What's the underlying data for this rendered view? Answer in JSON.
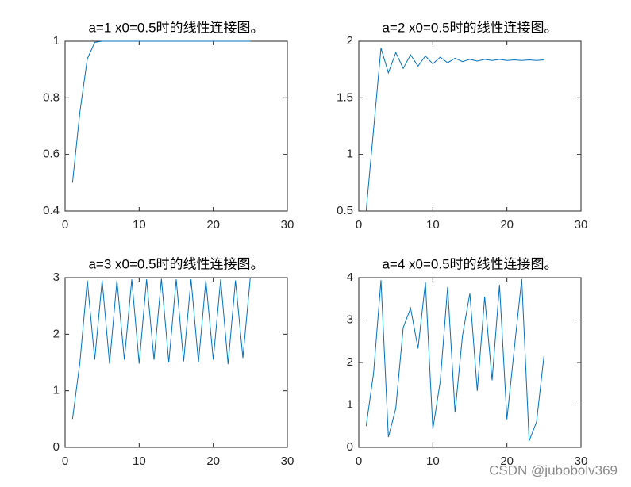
{
  "chart_data": [
    {
      "type": "line",
      "title": "a=1 x0=0.5时的线性连接图。",
      "xlim": [
        0,
        30
      ],
      "xticks": [
        0,
        10,
        20,
        30
      ],
      "ylim": [
        0.4,
        1
      ],
      "yticks": [
        0.4,
        0.6,
        0.8,
        1
      ],
      "x": [
        1,
        2,
        3,
        4,
        5,
        6,
        7,
        8,
        9,
        10,
        11,
        12,
        13,
        14,
        15,
        16,
        17,
        18,
        19,
        20,
        21,
        22,
        23,
        24,
        25
      ],
      "series": [
        {
          "color": "#0072bd",
          "values": [
            0.5,
            0.75,
            0.9375,
            0.996,
            1,
            1,
            1,
            1,
            1,
            1,
            1,
            1,
            1,
            1,
            1,
            1,
            1,
            1,
            1,
            1,
            1,
            1,
            1,
            1,
            1
          ]
        }
      ]
    },
    {
      "type": "line",
      "title": "a=2 x0=0.5时的线性连接图。",
      "xlim": [
        0,
        30
      ],
      "xticks": [
        0,
        10,
        20,
        30
      ],
      "ylim": [
        0.5,
        2
      ],
      "yticks": [
        0.5,
        1,
        1.5,
        2
      ],
      "x": [
        1,
        2,
        3,
        4,
        5,
        6,
        7,
        8,
        9,
        10,
        11,
        12,
        13,
        14,
        15,
        16,
        17,
        18,
        19,
        20,
        21,
        22,
        23,
        24,
        25
      ],
      "series": [
        {
          "color": "#0072bd",
          "values": [
            0.5,
            1.22,
            1.94,
            1.72,
            1.9,
            1.76,
            1.88,
            1.78,
            1.87,
            1.8,
            1.86,
            1.81,
            1.85,
            1.82,
            1.84,
            1.825,
            1.84,
            1.83,
            1.84,
            1.83,
            1.835,
            1.83,
            1.835,
            1.83,
            1.835
          ]
        }
      ]
    },
    {
      "type": "line",
      "title": "a=3 x0=0.5时的线性连接图。",
      "xlim": [
        0,
        30
      ],
      "xticks": [
        0,
        10,
        20,
        30
      ],
      "ylim": [
        0,
        3
      ],
      "yticks": [
        0,
        1,
        2,
        3
      ],
      "x": [
        1,
        2,
        3,
        4,
        5,
        6,
        7,
        8,
        9,
        10,
        11,
        12,
        13,
        14,
        15,
        16,
        17,
        18,
        19,
        20,
        21,
        22,
        23,
        24,
        25
      ],
      "series": [
        {
          "color": "#0072bd",
          "values": [
            0.5,
            1.5,
            2.95,
            1.55,
            2.95,
            1.48,
            2.95,
            1.55,
            2.97,
            1.48,
            2.97,
            1.55,
            2.98,
            1.5,
            2.97,
            1.52,
            2.97,
            1.5,
            2.95,
            1.55,
            2.97,
            1.47,
            2.95,
            1.58,
            3
          ]
        }
      ]
    },
    {
      "type": "line",
      "title": "a=4 x0=0.5时的线性连接图。",
      "xlim": [
        0,
        30
      ],
      "xticks": [
        0,
        10,
        20,
        30
      ],
      "ylim": [
        0,
        4
      ],
      "yticks": [
        0,
        1,
        2,
        3,
        4
      ],
      "x": [
        1,
        2,
        3,
        4,
        5,
        6,
        7,
        8,
        9,
        10,
        11,
        12,
        13,
        14,
        15,
        16,
        17,
        18,
        19,
        20,
        21,
        22,
        23,
        24,
        25
      ],
      "series": [
        {
          "color": "#0072bd",
          "values": [
            0.5,
            1.75,
            3.94,
            0.24,
            0.92,
            2.82,
            3.28,
            2.33,
            3.89,
            0.43,
            1.55,
            3.78,
            0.82,
            2.63,
            3.63,
            1.33,
            3.55,
            1.58,
            3.83,
            0.66,
            2.33,
            3.97,
            0.15,
            0.6,
            2.15
          ]
        }
      ]
    }
  ],
  "watermark": "CSDN @jubobolv369"
}
